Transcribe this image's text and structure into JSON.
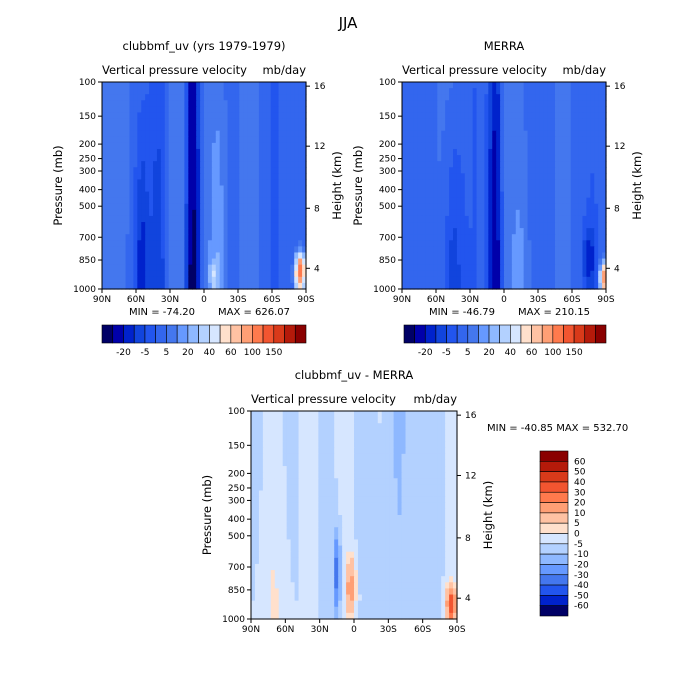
{
  "figure_title": "JJA",
  "chart_data": [
    {
      "type": "heatmap",
      "title": "clubbmf_uv (yrs 1979-1979)",
      "subtitle_left": "Vertical pressure velocity",
      "subtitle_right": "mb/day",
      "ylabel": "Pressure (mb)",
      "ylabel_right": "Height (km)",
      "x_ticks": [
        "90N",
        "60N",
        "30N",
        "0",
        "30S",
        "60S",
        "90S"
      ],
      "y_ticks": [
        "100",
        "150",
        "200",
        "250",
        "300",
        "400",
        "500",
        "700",
        "850",
        "1000"
      ],
      "y_right_ticks": [
        "16",
        "12",
        "8",
        "4"
      ],
      "min_label": "MIN = -74.20",
      "max_label": "MAX = 626.07",
      "min": -74.2,
      "max": 626.07,
      "colorbar": {
        "orientation": "horizontal",
        "tick_labels": [
          "-20",
          "-5",
          "5",
          "20",
          "40",
          "60",
          "100",
          "150"
        ],
        "colors": [
          "#000066",
          "#0000aa",
          "#0022cc",
          "#1144dd",
          "#2255ee",
          "#3366ee",
          "#4477ee",
          "#6699ff",
          "#8eb8ff",
          "#b3d1ff",
          "#d6e6ff",
          "#ffe0cc",
          "#ffc2a3",
          "#ff9f75",
          "#ff7a4d",
          "#f25530",
          "#d93a1a",
          "#b51a0a",
          "#8a0000"
        ]
      }
    },
    {
      "type": "heatmap",
      "title": "MERRA",
      "subtitle_left": "Vertical pressure velocity",
      "subtitle_right": "mb/day",
      "ylabel": "Pressure (mb)",
      "ylabel_right": "Height (km)",
      "x_ticks": [
        "90N",
        "60N",
        "30N",
        "0",
        "30S",
        "60S",
        "90S"
      ],
      "y_ticks": [
        "100",
        "150",
        "200",
        "250",
        "300",
        "400",
        "500",
        "700",
        "850",
        "1000"
      ],
      "y_right_ticks": [
        "16",
        "12",
        "8",
        "4"
      ],
      "min_label": "MIN = -46.79",
      "max_label": "MAX = 210.15",
      "min": -46.79,
      "max": 210.15,
      "colorbar": {
        "orientation": "horizontal",
        "tick_labels": [
          "-20",
          "-5",
          "5",
          "20",
          "40",
          "60",
          "100",
          "150"
        ],
        "colors": [
          "#000066",
          "#0000aa",
          "#0022cc",
          "#1144dd",
          "#2255ee",
          "#3366ee",
          "#4477ee",
          "#6699ff",
          "#8eb8ff",
          "#b3d1ff",
          "#d6e6ff",
          "#ffe0cc",
          "#ffc2a3",
          "#ff9f75",
          "#ff7a4d",
          "#f25530",
          "#d93a1a",
          "#b51a0a",
          "#8a0000"
        ]
      }
    },
    {
      "type": "heatmap",
      "title": "clubbmf_uv - MERRA",
      "subtitle_left": "Vertical pressure velocity",
      "subtitle_right": "mb/day",
      "ylabel": "Pressure (mb)",
      "ylabel_right": "Height (km)",
      "x_ticks": [
        "90N",
        "60N",
        "30N",
        "0",
        "30S",
        "60S",
        "90S"
      ],
      "y_ticks": [
        "100",
        "150",
        "200",
        "250",
        "300",
        "400",
        "500",
        "700",
        "850",
        "1000"
      ],
      "y_right_ticks": [
        "16",
        "12",
        "8",
        "4"
      ],
      "minmax_label": "MIN = -40.85   MAX = 532.70",
      "min": -40.85,
      "max": 532.7,
      "colorbar": {
        "orientation": "vertical",
        "tick_labels": [
          "60",
          "50",
          "40",
          "30",
          "20",
          "10",
          "5",
          "0",
          "-5",
          "-10",
          "-20",
          "-30",
          "-40",
          "-50",
          "-60"
        ],
        "colors": [
          "#8a0000",
          "#b51a0a",
          "#d93a1a",
          "#f25530",
          "#ff7a4d",
          "#ff9f75",
          "#ffc2a3",
          "#ffe0cc",
          "#d6e6ff",
          "#b3d1ff",
          "#8eb8ff",
          "#6699ff",
          "#4477ee",
          "#2255ee",
          "#0022cc",
          "#000066"
        ]
      }
    }
  ]
}
